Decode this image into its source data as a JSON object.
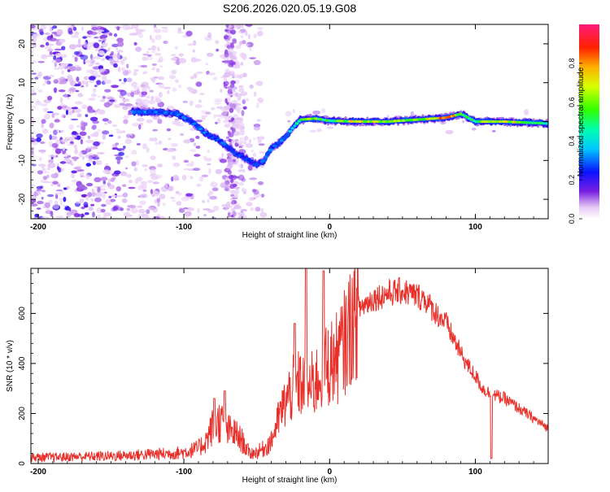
{
  "title": "S206.2026.020.05.19.G08",
  "chart_data": [
    {
      "type": "heatmap",
      "name": "spectrogram",
      "xlabel": "Height of straight line (km)",
      "ylabel": "Frequency (Hz)",
      "xlim": [
        -205,
        150
      ],
      "ylim": [
        -25,
        25
      ],
      "xticks": [
        -200,
        -100,
        0,
        100
      ],
      "xtick_labels": [
        "-200",
        "-100",
        "0",
        "100"
      ],
      "yticks": [
        -20,
        -10,
        0,
        10,
        20
      ],
      "ytick_labels": [
        "-20",
        "-10",
        "0",
        "10",
        "20"
      ],
      "colorbar": {
        "label": "Normalized spectral amplitude",
        "range": [
          0,
          1
        ],
        "ticks": [
          0.0,
          0.2,
          0.4,
          0.6,
          0.8
        ],
        "tick_labels": [
          "0.0",
          "0.2",
          "0.4",
          "0.6",
          "0.8"
        ]
      },
      "ridge": {
        "x": [
          -135,
          -120,
          -105,
          -95,
          -85,
          -75,
          -65,
          -55,
          -50,
          -45,
          -40,
          -30,
          -25,
          -20,
          -10,
          0,
          20,
          40,
          60,
          80,
          90,
          100,
          120,
          150
        ],
        "y": [
          2.5,
          2.5,
          2.0,
          0.0,
          -3.0,
          -5.0,
          -8.0,
          -10.0,
          -11.0,
          -10.0,
          -7.0,
          -4.0,
          -1.5,
          0.5,
          0.8,
          0.2,
          0.0,
          0.0,
          0.5,
          1.0,
          2.0,
          0.0,
          0.0,
          -0.5
        ],
        "amplitude": [
          0.35,
          0.3,
          0.3,
          0.32,
          0.3,
          0.3,
          0.28,
          0.25,
          0.25,
          0.3,
          0.32,
          0.35,
          0.4,
          0.6,
          0.65,
          0.55,
          0.75,
          0.7,
          0.6,
          0.9,
          0.65,
          0.55,
          0.8,
          0.5
        ]
      }
    },
    {
      "type": "line",
      "name": "snr",
      "xlabel": "Height of straight line (km)",
      "ylabel": "SNR (10 * v/v)",
      "xlim": [
        -205,
        150
      ],
      "ylim": [
        0,
        780
      ],
      "xticks": [
        -200,
        -100,
        0,
        100
      ],
      "xtick_labels": [
        "-200",
        "-100",
        "0",
        "100"
      ],
      "yticks": [
        0,
        200,
        400,
        600
      ],
      "ytick_labels": [
        "0",
        "200",
        "400",
        "600"
      ],
      "color": "#e8302a",
      "series": [
        {
          "name": "SNR",
          "x": [
            -205,
            -190,
            -170,
            -150,
            -130,
            -110,
            -100,
            -90,
            -85,
            -80,
            -75,
            -70,
            -65,
            -60,
            -55,
            -50,
            -45,
            -40,
            -35,
            -30,
            -25,
            -20,
            -15,
            -10,
            -5,
            0,
            5,
            10,
            15,
            20,
            25,
            30,
            40,
            50,
            60,
            65,
            70,
            75,
            80,
            85,
            90,
            95,
            100,
            105,
            110,
            115,
            120,
            130,
            140,
            150
          ],
          "y": [
            25,
            25,
            28,
            30,
            35,
            40,
            45,
            60,
            90,
            150,
            170,
            130,
            120,
            90,
            40,
            45,
            60,
            90,
            180,
            250,
            300,
            320,
            300,
            320,
            380,
            400,
            420,
            480,
            560,
            620,
            640,
            660,
            680,
            690,
            670,
            660,
            620,
            590,
            560,
            500,
            440,
            390,
            350,
            300,
            280,
            270,
            260,
            220,
            180,
            140
          ],
          "spikes": [
            {
              "x": -79,
              "y": 260
            },
            {
              "x": -72,
              "y": 290
            },
            {
              "x": -24,
              "y": 560
            },
            {
              "x": -16,
              "y": 780
            },
            {
              "x": -4,
              "y": 770
            },
            {
              "x": 111,
              "y": 20
            }
          ]
        }
      ]
    }
  ]
}
